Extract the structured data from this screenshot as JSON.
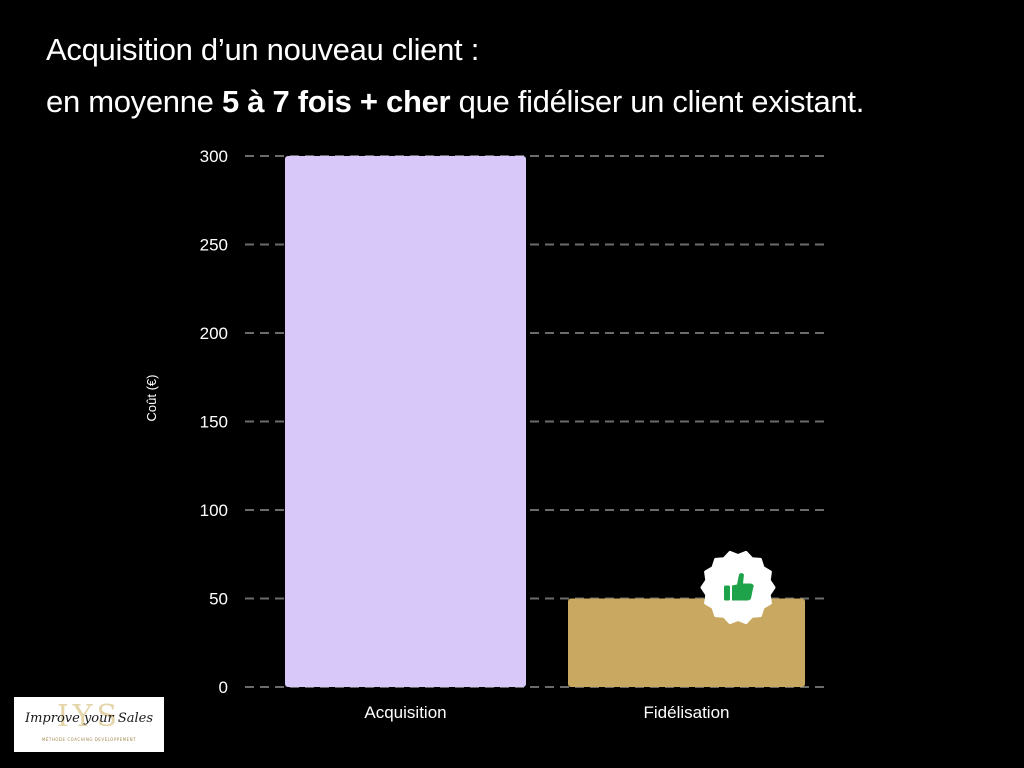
{
  "title": {
    "line1": "Acquisition d’un nouveau client :",
    "line2_prefix": "en moyenne ",
    "line2_bold": "5 à 7 fois + cher",
    "line2_suffix": " que fidéliser un client existant."
  },
  "chart_data": {
    "type": "bar",
    "categories": [
      "Acquisition",
      "Fidélisation"
    ],
    "values": [
      300,
      50
    ],
    "colors": [
      "#d8c8fa",
      "#c9a961"
    ],
    "xlabel": "",
    "ylabel": "Coût (€)",
    "ylim": [
      0,
      300
    ],
    "yticks": [
      0,
      50,
      100,
      150,
      200,
      250,
      300
    ],
    "grid": "dashed horizontal",
    "legend": "none",
    "annotation": {
      "icon": "thumbs-up-badge-icon",
      "category": "Fidélisation",
      "color": "#1fa34a"
    }
  },
  "logo": {
    "monogram": "IYS",
    "script": "Improve your Sales",
    "tagline": "MÉTHODE COACHING DEVELOPPEMENT"
  }
}
